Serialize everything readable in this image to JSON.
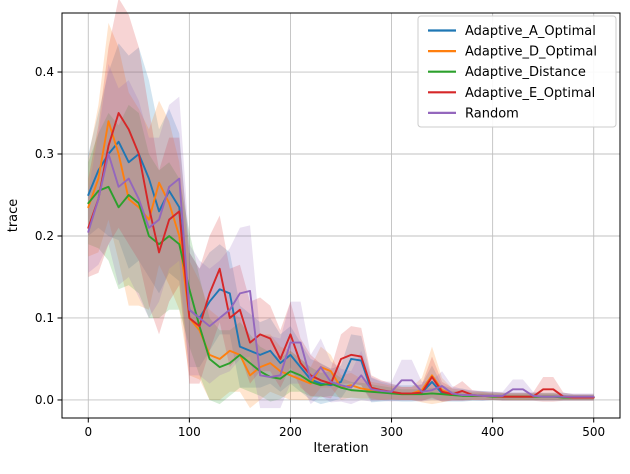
{
  "chart_data": {
    "type": "line",
    "title": "",
    "xlabel": "Iteration",
    "ylabel": "trace",
    "xlim": [
      -26,
      526
    ],
    "ylim": [
      -0.022,
      0.472
    ],
    "xticks": [
      0,
      100,
      200,
      300,
      400,
      500
    ],
    "yticks": [
      0.0,
      0.1,
      0.2,
      0.3,
      0.4
    ],
    "grid": true,
    "grid_color": "#c0c0c0",
    "background_color": "#ffffff",
    "frame_color": "#000000",
    "legend_position": "upper right",
    "band_alpha": 0.2,
    "x": [
      0,
      10,
      20,
      30,
      40,
      50,
      60,
      70,
      80,
      90,
      100,
      110,
      120,
      130,
      140,
      150,
      160,
      170,
      180,
      190,
      200,
      210,
      220,
      230,
      240,
      250,
      260,
      270,
      280,
      290,
      300,
      310,
      320,
      330,
      340,
      350,
      360,
      370,
      380,
      390,
      400,
      410,
      420,
      430,
      440,
      450,
      460,
      470,
      480,
      490,
      500
    ],
    "series": [
      {
        "name": "Adaptive_A_Optimal",
        "color": "#1f77b4",
        "values": [
          0.25,
          0.28,
          0.3,
          0.315,
          0.29,
          0.3,
          0.27,
          0.23,
          0.255,
          0.235,
          0.11,
          0.1,
          0.12,
          0.135,
          0.13,
          0.065,
          0.06,
          0.055,
          0.06,
          0.045,
          0.055,
          0.04,
          0.025,
          0.02,
          0.018,
          0.022,
          0.05,
          0.048,
          0.012,
          0.01,
          0.009,
          0.008,
          0.008,
          0.009,
          0.022,
          0.008,
          0.006,
          0.006,
          0.005,
          0.005,
          0.005,
          0.004,
          0.004,
          0.004,
          0.004,
          0.004,
          0.004,
          0.004,
          0.003,
          0.003,
          0.003
        ],
        "band": [
          0.05,
          0.07,
          0.1,
          0.12,
          0.13,
          0.13,
          0.12,
          0.1,
          0.1,
          0.09,
          0.07,
          0.06,
          0.06,
          0.055,
          0.05,
          0.05,
          0.045,
          0.04,
          0.04,
          0.035,
          0.035,
          0.03,
          0.025,
          0.025,
          0.02,
          0.02,
          0.03,
          0.03,
          0.015,
          0.012,
          0.01,
          0.01,
          0.01,
          0.01,
          0.02,
          0.01,
          0.008,
          0.008,
          0.006,
          0.006,
          0.005,
          0.005,
          0.005,
          0.005,
          0.005,
          0.005,
          0.005,
          0.005,
          0.004,
          0.004,
          0.004
        ]
      },
      {
        "name": "Adaptive_D_Optimal",
        "color": "#ff7f0e",
        "values": [
          0.235,
          0.27,
          0.34,
          0.3,
          0.245,
          0.235,
          0.22,
          0.265,
          0.24,
          0.2,
          0.1,
          0.085,
          0.055,
          0.05,
          0.06,
          0.055,
          0.03,
          0.04,
          0.045,
          0.035,
          0.03,
          0.025,
          0.02,
          0.04,
          0.035,
          0.015,
          0.018,
          0.014,
          0.012,
          0.01,
          0.009,
          0.008,
          0.008,
          0.012,
          0.03,
          0.012,
          0.007,
          0.006,
          0.005,
          0.005,
          0.004,
          0.004,
          0.004,
          0.004,
          0.004,
          0.004,
          0.004,
          0.003,
          0.003,
          0.003,
          0.003
        ],
        "band": [
          0.06,
          0.09,
          0.12,
          0.13,
          0.13,
          0.12,
          0.11,
          0.1,
          0.1,
          0.09,
          0.07,
          0.06,
          0.055,
          0.05,
          0.05,
          0.045,
          0.04,
          0.04,
          0.035,
          0.03,
          0.03,
          0.025,
          0.02,
          0.025,
          0.02,
          0.015,
          0.015,
          0.012,
          0.01,
          0.01,
          0.008,
          0.008,
          0.008,
          0.015,
          0.035,
          0.015,
          0.007,
          0.006,
          0.005,
          0.005,
          0.004,
          0.004,
          0.004,
          0.004,
          0.004,
          0.004,
          0.004,
          0.003,
          0.003,
          0.003,
          0.003
        ]
      },
      {
        "name": "Adaptive_Distance",
        "color": "#2ca02c",
        "values": [
          0.24,
          0.255,
          0.26,
          0.235,
          0.25,
          0.24,
          0.2,
          0.19,
          0.2,
          0.19,
          0.135,
          0.09,
          0.05,
          0.04,
          0.045,
          0.055,
          0.045,
          0.035,
          0.028,
          0.026,
          0.035,
          0.03,
          0.022,
          0.018,
          0.02,
          0.015,
          0.012,
          0.011,
          0.01,
          0.009,
          0.008,
          0.007,
          0.007,
          0.007,
          0.008,
          0.007,
          0.006,
          0.005,
          0.005,
          0.005,
          0.004,
          0.004,
          0.004,
          0.004,
          0.004,
          0.004,
          0.004,
          0.003,
          0.003,
          0.003,
          0.003
        ],
        "band": [
          0.05,
          0.07,
          0.09,
          0.1,
          0.11,
          0.11,
          0.1,
          0.09,
          0.09,
          0.08,
          0.07,
          0.06,
          0.05,
          0.045,
          0.04,
          0.04,
          0.035,
          0.03,
          0.03,
          0.025,
          0.025,
          0.02,
          0.018,
          0.015,
          0.015,
          0.012,
          0.01,
          0.01,
          0.009,
          0.008,
          0.007,
          0.006,
          0.006,
          0.006,
          0.007,
          0.006,
          0.005,
          0.005,
          0.004,
          0.004,
          0.004,
          0.004,
          0.004,
          0.004,
          0.004,
          0.004,
          0.004,
          0.003,
          0.003,
          0.003,
          0.003
        ]
      },
      {
        "name": "Adaptive_E_Optimal",
        "color": "#d62728",
        "values": [
          0.21,
          0.245,
          0.31,
          0.35,
          0.33,
          0.3,
          0.235,
          0.18,
          0.22,
          0.23,
          0.1,
          0.09,
          0.13,
          0.16,
          0.1,
          0.11,
          0.07,
          0.08,
          0.075,
          0.05,
          0.08,
          0.045,
          0.03,
          0.024,
          0.02,
          0.05,
          0.055,
          0.053,
          0.015,
          0.012,
          0.01,
          0.008,
          0.008,
          0.009,
          0.028,
          0.01,
          0.007,
          0.011,
          0.006,
          0.005,
          0.005,
          0.004,
          0.004,
          0.004,
          0.004,
          0.013,
          0.013,
          0.004,
          0.003,
          0.003,
          0.003
        ],
        "band": [
          0.06,
          0.09,
          0.12,
          0.14,
          0.14,
          0.13,
          0.12,
          0.1,
          0.1,
          0.09,
          0.08,
          0.07,
          0.07,
          0.065,
          0.06,
          0.055,
          0.05,
          0.045,
          0.04,
          0.035,
          0.04,
          0.03,
          0.025,
          0.02,
          0.018,
          0.03,
          0.035,
          0.035,
          0.015,
          0.012,
          0.01,
          0.008,
          0.008,
          0.01,
          0.025,
          0.012,
          0.008,
          0.012,
          0.006,
          0.005,
          0.005,
          0.005,
          0.005,
          0.005,
          0.005,
          0.015,
          0.015,
          0.005,
          0.004,
          0.004,
          0.004
        ]
      },
      {
        "name": "Random",
        "color": "#9467bd",
        "values": [
          0.205,
          0.245,
          0.3,
          0.26,
          0.27,
          0.245,
          0.21,
          0.22,
          0.26,
          0.27,
          0.11,
          0.1,
          0.09,
          0.1,
          0.11,
          0.13,
          0.133,
          0.03,
          0.028,
          0.03,
          0.07,
          0.07,
          0.025,
          0.04,
          0.022,
          0.018,
          0.015,
          0.03,
          0.013,
          0.011,
          0.01,
          0.024,
          0.024,
          0.01,
          0.012,
          0.017,
          0.008,
          0.006,
          0.006,
          0.005,
          0.005,
          0.005,
          0.013,
          0.013,
          0.005,
          0.004,
          0.004,
          0.004,
          0.004,
          0.004,
          0.004
        ],
        "band": [
          0.05,
          0.08,
          0.11,
          0.12,
          0.12,
          0.12,
          0.11,
          0.1,
          0.1,
          0.1,
          0.08,
          0.07,
          0.07,
          0.07,
          0.075,
          0.08,
          0.08,
          0.05,
          0.05,
          0.045,
          0.05,
          0.05,
          0.03,
          0.035,
          0.025,
          0.02,
          0.02,
          0.03,
          0.015,
          0.012,
          0.012,
          0.025,
          0.025,
          0.012,
          0.012,
          0.018,
          0.009,
          0.007,
          0.006,
          0.006,
          0.005,
          0.005,
          0.012,
          0.012,
          0.005,
          0.004,
          0.004,
          0.004,
          0.004,
          0.004,
          0.004
        ]
      }
    ]
  }
}
